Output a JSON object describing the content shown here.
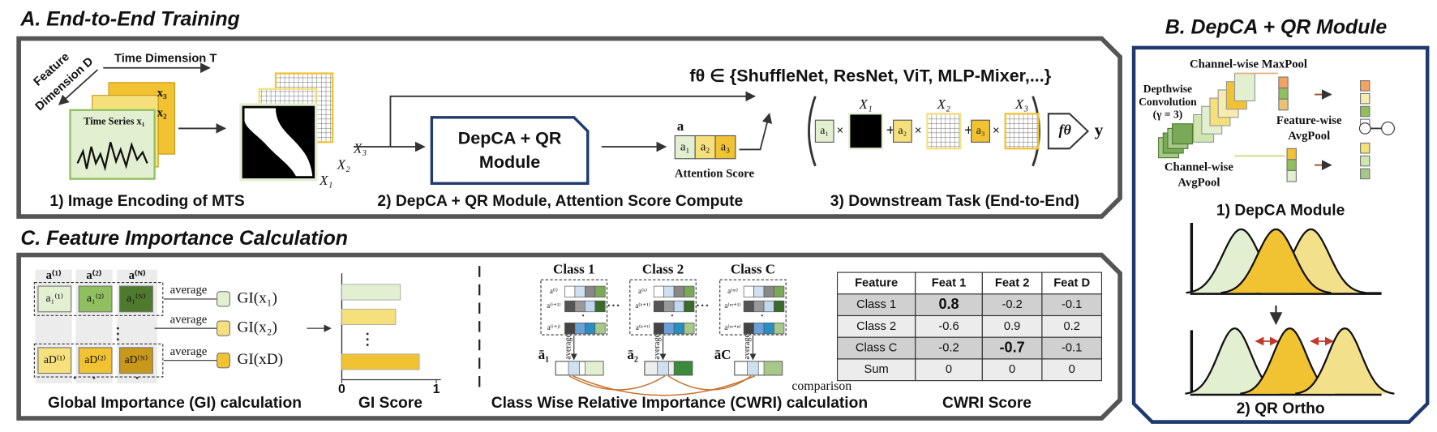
{
  "panel_a": {
    "title": "A. End-to-End Training",
    "feature_dimension": [
      "Feature",
      "Dimension D"
    ],
    "time_dimension": "Time Dimension T",
    "time_series": "Time Series x₁",
    "series": [
      "x₂",
      "x₃"
    ],
    "encoded": [
      "X₁",
      "X₂",
      "X₃"
    ],
    "module": [
      "DepCA + QR",
      "Module"
    ],
    "attention_vector": "a",
    "attention": [
      "a₁",
      "a₂",
      "a₃"
    ],
    "attention_label": "Attention Score",
    "backbones": "fθ ∈ {ShuffleNet, ResNet, ViT, MLP-Mixer,...}",
    "times": "×",
    "plus": "+",
    "model": "fθ",
    "output": "y",
    "steps": [
      "1) Image Encoding of MTS",
      "2) DepCA + QR Module, Attention Score Compute",
      "3) Downstream Task (End-to-End)"
    ]
  },
  "panel_c": {
    "title": "C. Feature Importance Calculation",
    "gi": {
      "headers": [
        "a⁽¹⁾",
        "a⁽²⁾",
        "a⁽ᴺ⁾"
      ],
      "first_row": [
        "a₁⁽¹⁾",
        "a₁⁽²⁾",
        "a₁⁽ᴺ⁾"
      ],
      "last_row": [
        "aD⁽¹⁾",
        "aD⁽²⁾",
        "aD⁽ᴺ⁾"
      ],
      "operation": "average",
      "outputs": [
        "GI(x₁)",
        "GI(x₂)",
        "GI(xD)"
      ],
      "caption": "Global Importance (GI) calculation"
    },
    "gi_score": {
      "type": "bar",
      "values": [
        0.62,
        0.57,
        0.82
      ],
      "colors": [
        "#e2efd0",
        "#f6e07c",
        "#f1c232"
      ],
      "xlim": [
        0,
        1
      ],
      "xticks": [
        0,
        1
      ],
      "caption": "GI Score"
    },
    "cwri": {
      "classes": [
        {
          "name": "Class 1",
          "rows": [
            "a⁽ⁱ⁾",
            "a⁽ⁱ⁺¹⁾",
            "a⁽ⁱ⁺ʲ⁾"
          ],
          "mean": "ā₁"
        },
        {
          "name": "Class 2",
          "rows": [
            "a⁽ᵏ⁾",
            "a⁽ᵏ⁺¹⁾",
            "a⁽ᵏ⁺ˡ⁾"
          ],
          "mean": "ā₂"
        },
        {
          "name": "Class C",
          "rows": [
            "a⁽ᵐ⁾",
            "a⁽ᵐ⁺¹⁾",
            "a⁽ᵐ⁺ⁿ⁾"
          ],
          "mean": "āC"
        }
      ],
      "operation": "average",
      "comparison": "comparison",
      "caption": "Class Wise Relative Importance (CWRI) calculation"
    },
    "cwri_score": {
      "header": [
        "Feature",
        "Feat 1",
        "Feat 2",
        "Feat D"
      ],
      "rows": [
        [
          "Class 1",
          0.8,
          -0.2,
          -0.1
        ],
        [
          "Class 2",
          -0.6,
          0.9,
          0.2
        ],
        [
          "Class C",
          -0.2,
          -0.7,
          -0.1
        ],
        [
          "Sum",
          0,
          0,
          0
        ]
      ],
      "highlights": [
        {
          "row": 0,
          "col": 1,
          "color": "#e02020"
        },
        {
          "row": 2,
          "col": 2,
          "color": "#2a6fc0"
        }
      ],
      "caption": "CWRI Score"
    }
  },
  "panel_b": {
    "title": "B. DepCA + QR Module",
    "maxpool": "Channel-wise MaxPool",
    "depthwise": [
      "Depthwise",
      "Convolution",
      "(γ = 3)"
    ],
    "feature_avgpool": [
      "Feature-wise",
      "AvgPool"
    ],
    "channel_avgpool": [
      "Channel-wise",
      "AvgPool"
    ],
    "steps": [
      "1) DepCA Module",
      "2) QR Ortho"
    ]
  }
}
